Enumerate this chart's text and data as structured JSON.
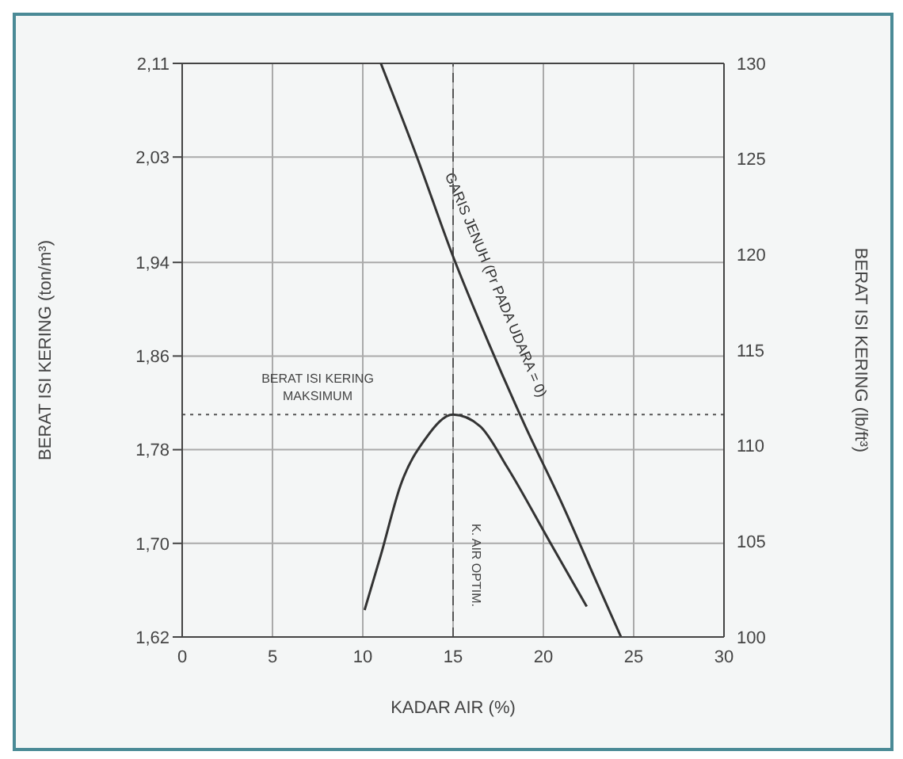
{
  "chart_data": {
    "type": "line",
    "xlabel": "KADAR AIR (%)",
    "ylabel": "BERAT ISI KERING (ton/m³)",
    "y2label": "BERAT ISI KERING (lb/ft³)",
    "series": [
      {
        "name": "GARIS JENUH (Pr PADA UDARA = 0)",
        "color": "#333333",
        "x": [
          11.0,
          13.0,
          15.0,
          17.0,
          19.0,
          21.0,
          23.0,
          24.3
        ],
        "values": [
          2.11,
          2.03,
          1.945,
          1.87,
          1.8,
          1.735,
          1.665,
          1.62
        ]
      },
      {
        "color": "#333333",
        "x": [
          10.1,
          11.0,
          12.1,
          13.5,
          15.0,
          16.5,
          18.0,
          20.4,
          22.4
        ],
        "values": [
          1.643,
          1.69,
          1.75,
          1.79,
          1.81,
          1.8,
          1.765,
          1.7,
          1.646
        ]
      }
    ],
    "xlim": [
      0,
      30
    ],
    "xticks": [
      0,
      5,
      10,
      15,
      20,
      25,
      30
    ],
    "ylim": [
      1.62,
      2.11
    ],
    "yticks": [
      {
        "value": 1.62,
        "label": "1,62"
      },
      {
        "value": 1.7,
        "label": "1,70"
      },
      {
        "value": 1.78,
        "label": "1,78"
      },
      {
        "value": 1.86,
        "label": "1,86"
      },
      {
        "value": 1.94,
        "label": "1,94"
      },
      {
        "value": 2.03,
        "label": "2,03"
      },
      {
        "value": 2.11,
        "label": "2,11"
      }
    ],
    "y2lim": [
      100,
      130
    ],
    "y2ticks": [
      100,
      105,
      110,
      115,
      120,
      125,
      130
    ],
    "ref_lines": [
      {
        "axis": "y",
        "value": 1.81,
        "label": "BERAT ISI KERING MAKSIMUM",
        "color": "#555555",
        "line_style": "dotted"
      },
      {
        "axis": "x",
        "value": 15,
        "label": "K. AIR OPTIM.",
        "color": "#555555",
        "line_style": "dashed"
      }
    ],
    "grid": true,
    "marker": "none",
    "line_style": "solid"
  }
}
